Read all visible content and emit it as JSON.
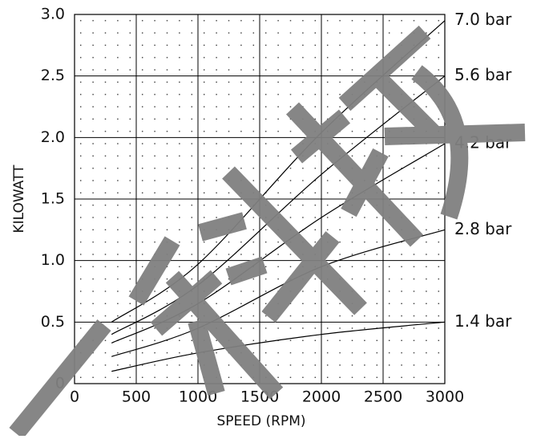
{
  "chart_data": {
    "type": "line",
    "x_label": "SPEED (RPM)",
    "y_label": "KILOWATT",
    "x": [
      300,
      1000,
      2000,
      3000
    ],
    "series": [
      {
        "name": "7.0 bar",
        "color": "#000000",
        "values": [
          0.5,
          0.97,
          2.04,
          2.95
        ]
      },
      {
        "name": "5.6 bar",
        "color": "#000000",
        "values": [
          0.4,
          0.8,
          1.7,
          2.5
        ]
      },
      {
        "name": "4.2 bar",
        "color": "#000000",
        "values": [
          0.33,
          0.65,
          1.35,
          1.95
        ]
      },
      {
        "name": "2.8 bar",
        "color": "#000000",
        "values": [
          0.22,
          0.45,
          0.95,
          1.25
        ]
      },
      {
        "name": "1.4 bar",
        "color": "#000000",
        "values": [
          0.1,
          0.25,
          0.4,
          0.5
        ]
      }
    ],
    "xlim": [
      0,
      3000
    ],
    "xticks": [
      0,
      500,
      1000,
      1500,
      2000,
      2500,
      3000
    ],
    "ylim": [
      0,
      3
    ],
    "yticks": [
      0,
      0.5,
      {
        "value": 1,
        "label": "1.0"
      },
      1.5,
      {
        "value": 2,
        "label": "2.0"
      },
      2.5,
      {
        "value": 3,
        "label": "3.0"
      }
    ],
    "grid": true
  }
}
